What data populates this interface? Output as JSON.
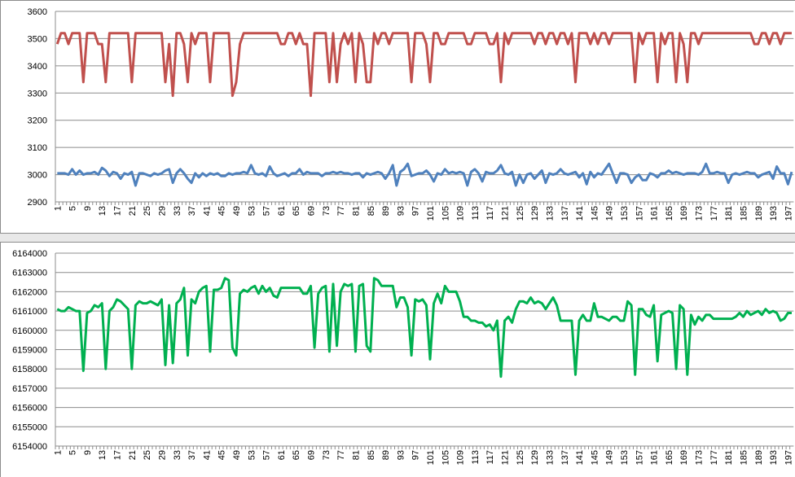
{
  "chart_data": [
    {
      "type": "line",
      "categories": [
        1,
        null,
        null,
        null,
        5,
        null,
        null,
        null,
        9,
        null,
        null,
        null,
        13,
        null,
        null,
        null,
        17,
        null,
        null,
        null,
        21,
        null,
        null,
        null,
        25,
        null,
        null,
        null,
        29,
        null,
        null,
        null,
        33,
        null,
        null,
        null,
        37,
        null,
        null,
        null,
        41,
        null,
        null,
        null,
        45,
        null,
        null,
        null,
        49,
        null,
        null,
        null,
        53,
        null,
        null,
        null,
        57,
        null,
        null,
        null,
        61,
        null,
        null,
        null,
        65,
        null,
        null,
        null,
        69,
        null,
        null,
        null,
        73,
        null,
        null,
        null,
        77,
        null,
        null,
        null,
        81,
        null,
        null,
        null,
        85,
        null,
        null,
        null,
        89,
        null,
        null,
        null,
        93,
        null,
        null,
        null,
        97,
        null,
        null,
        null,
        101,
        null,
        null,
        null,
        105,
        null,
        null,
        null,
        109,
        null,
        null,
        null,
        113,
        null,
        null,
        null,
        117,
        null,
        null,
        null,
        121,
        null,
        null,
        null,
        125,
        null,
        null,
        null,
        129,
        null,
        null,
        null,
        133,
        null,
        null,
        null,
        137,
        null,
        null,
        null,
        141,
        null,
        null,
        null,
        145,
        null,
        null,
        null,
        149,
        null,
        null,
        null,
        153,
        null,
        null,
        null,
        157,
        null,
        null,
        null,
        161,
        null,
        null,
        null,
        165,
        null,
        null,
        null,
        169,
        null,
        null,
        null,
        173,
        null,
        null,
        null,
        177,
        null,
        null,
        null,
        181,
        null,
        null,
        null,
        185,
        null,
        null,
        null,
        189,
        null,
        null,
        null,
        193,
        null,
        null,
        null,
        197,
        null
      ],
      "series": [
        {
          "color": "#c0504d",
          "values": [
            3480,
            3520,
            3520,
            3480,
            3520,
            3520,
            3520,
            3340,
            3520,
            3520,
            3520,
            3480,
            3480,
            3340,
            3520,
            3520,
            3520,
            3520,
            3520,
            3520,
            3340,
            3520,
            3520,
            3520,
            3520,
            3520,
            3520,
            3520,
            3520,
            3340,
            3480,
            3290,
            3520,
            3520,
            3480,
            3340,
            3520,
            3480,
            3520,
            3520,
            3520,
            3340,
            3520,
            3520,
            3520,
            3520,
            3520,
            3290,
            3340,
            3480,
            3520,
            3520,
            3520,
            3520,
            3520,
            3520,
            3520,
            3520,
            3520,
            3520,
            3480,
            3480,
            3520,
            3520,
            3480,
            3520,
            3480,
            3480,
            3290,
            3520,
            3520,
            3520,
            3520,
            3340,
            3520,
            3340,
            3480,
            3520,
            3480,
            3520,
            3340,
            3520,
            3480,
            3340,
            3340,
            3520,
            3480,
            3520,
            3520,
            3480,
            3520,
            3520,
            3520,
            3520,
            3520,
            3340,
            3520,
            3520,
            3520,
            3480,
            3340,
            3520,
            3520,
            3480,
            3480,
            3520,
            3520,
            3520,
            3520,
            3520,
            3480,
            3480,
            3520,
            3520,
            3520,
            3520,
            3480,
            3480,
            3520,
            3340,
            3520,
            3480,
            3520,
            3520,
            3520,
            3520,
            3520,
            3520,
            3480,
            3520,
            3520,
            3480,
            3520,
            3520,
            3480,
            3520,
            3520,
            3480,
            3520,
            3340,
            3520,
            3520,
            3520,
            3480,
            3520,
            3480,
            3520,
            3520,
            3480,
            3520,
            3520,
            3520,
            3520,
            3520,
            3520,
            3340,
            3520,
            3480,
            3520,
            3520,
            3520,
            3340,
            3520,
            3480,
            3520,
            3520,
            3340,
            3520,
            3480,
            3340,
            3520,
            3520,
            3480,
            3520,
            3520,
            3520,
            3520,
            3520,
            3520,
            3520,
            3520,
            3520,
            3520,
            3520,
            3520,
            3520,
            3520,
            3480,
            3480,
            3520,
            3520,
            3480,
            3520,
            3520,
            3480,
            3520,
            3520,
            3520
          ]
        },
        {
          "color": "#4f81bd",
          "values": [
            3005,
            3005,
            3005,
            3000,
            3020,
            3000,
            3015,
            3000,
            3005,
            3005,
            3010,
            3000,
            3025,
            3015,
            2995,
            3010,
            3005,
            2985,
            3005,
            3000,
            3010,
            2960,
            3005,
            3005,
            3000,
            2995,
            3005,
            3000,
            3005,
            3015,
            3020,
            2970,
            3005,
            3020,
            3005,
            2985,
            2970,
            3005,
            2990,
            3005,
            2995,
            3005,
            3000,
            3005,
            2995,
            2995,
            3005,
            3000,
            3005,
            3005,
            3010,
            3005,
            3035,
            3005,
            3000,
            3005,
            2995,
            3030,
            3005,
            2995,
            3000,
            3005,
            2995,
            3005,
            3005,
            3020,
            3000,
            3010,
            3005,
            3005,
            3005,
            2995,
            3005,
            3005,
            3010,
            3005,
            3010,
            3005,
            3005,
            3000,
            3005,
            3005,
            2990,
            3005,
            3000,
            3005,
            3010,
            3005,
            2985,
            3005,
            3035,
            2960,
            3010,
            3020,
            3040,
            2995,
            3000,
            3005,
            3005,
            3015,
            3000,
            2975,
            3005,
            3000,
            3020,
            3005,
            3010,
            3005,
            3010,
            3005,
            2960,
            3010,
            3020,
            3005,
            2975,
            3010,
            3005,
            3005,
            3015,
            3035,
            3005,
            3000,
            3010,
            2960,
            3000,
            2970,
            3000,
            3005,
            2985,
            3000,
            3015,
            2970,
            3005,
            3000,
            3005,
            3020,
            3005,
            3000,
            3005,
            3010,
            2990,
            3005,
            2965,
            3010,
            2990,
            3005,
            3000,
            3020,
            3040,
            3005,
            2970,
            3005,
            3005,
            3000,
            2970,
            2990,
            3000,
            2980,
            2980,
            3005,
            3000,
            2990,
            3005,
            3005,
            3015,
            3005,
            3010,
            3005,
            3000,
            3005,
            3005,
            3005,
            3000,
            3010,
            3040,
            3005,
            3005,
            3010,
            3005,
            3005,
            2970,
            3000,
            3005,
            3000,
            3005,
            3010,
            3005,
            3005,
            2990,
            3000,
            3005,
            3010,
            2985,
            3030,
            3005,
            3005,
            2965,
            3010
          ]
        }
      ],
      "ylim": [
        2900,
        3600
      ],
      "yticks": [
        2900,
        3000,
        3100,
        3200,
        3300,
        3400,
        3500,
        3600
      ],
      "grid": true
    },
    {
      "type": "line",
      "categories": [
        1,
        null,
        null,
        null,
        5,
        null,
        null,
        null,
        9,
        null,
        null,
        null,
        13,
        null,
        null,
        null,
        17,
        null,
        null,
        null,
        21,
        null,
        null,
        null,
        25,
        null,
        null,
        null,
        29,
        null,
        null,
        null,
        33,
        null,
        null,
        null,
        37,
        null,
        null,
        null,
        41,
        null,
        null,
        null,
        45,
        null,
        null,
        null,
        49,
        null,
        null,
        null,
        53,
        null,
        null,
        null,
        57,
        null,
        null,
        null,
        61,
        null,
        null,
        null,
        65,
        null,
        null,
        null,
        69,
        null,
        null,
        null,
        73,
        null,
        null,
        null,
        77,
        null,
        null,
        null,
        81,
        null,
        null,
        null,
        85,
        null,
        null,
        null,
        89,
        null,
        null,
        null,
        93,
        null,
        null,
        null,
        97,
        null,
        null,
        null,
        101,
        null,
        null,
        null,
        105,
        null,
        null,
        null,
        109,
        null,
        null,
        null,
        113,
        null,
        null,
        null,
        117,
        null,
        null,
        null,
        121,
        null,
        null,
        null,
        125,
        null,
        null,
        null,
        129,
        null,
        null,
        null,
        133,
        null,
        null,
        null,
        137,
        null,
        null,
        null,
        141,
        null,
        null,
        null,
        145,
        null,
        null,
        null,
        149,
        null,
        null,
        null,
        153,
        null,
        null,
        null,
        157,
        null,
        null,
        null,
        161,
        null,
        null,
        null,
        165,
        null,
        null,
        null,
        169,
        null,
        null,
        null,
        173,
        null,
        null,
        null,
        177,
        null,
        null,
        null,
        181,
        null,
        null,
        null,
        185,
        null,
        null,
        null,
        189,
        null,
        null,
        null,
        193,
        null,
        null,
        null,
        197,
        null
      ],
      "series": [
        {
          "color": "#00b050",
          "values": [
            6161100,
            6161000,
            6161000,
            6161200,
            6161100,
            6161000,
            6161000,
            6157900,
            6160900,
            6161000,
            6161300,
            6161200,
            6161400,
            6158000,
            6161000,
            6161200,
            6161600,
            6161500,
            6161300,
            6161100,
            6158000,
            6161300,
            6161500,
            6161400,
            6161400,
            6161500,
            6161400,
            6161300,
            6161600,
            6158200,
            6161300,
            6158300,
            6161400,
            6161600,
            6162200,
            6158700,
            6161600,
            6161400,
            6162000,
            6162200,
            6162300,
            6158900,
            6162100,
            6162100,
            6162200,
            6162700,
            6162600,
            6159100,
            6158700,
            6161900,
            6162100,
            6162000,
            6162200,
            6162300,
            6161900,
            6162300,
            6162000,
            6162200,
            6161800,
            6161700,
            6162200,
            6162200,
            6162200,
            6162200,
            6162200,
            6162200,
            6161900,
            6161900,
            6162300,
            6159100,
            6161900,
            6162200,
            6162300,
            6158900,
            6162400,
            6159200,
            6162000,
            6162400,
            6162300,
            6162400,
            6158900,
            6162300,
            6162400,
            6159200,
            6158900,
            6162700,
            6162600,
            6162300,
            6162300,
            6162300,
            6162300,
            6161200,
            6161700,
            6161700,
            6161200,
            6158700,
            6161600,
            6161500,
            6161600,
            6161300,
            6158500,
            6161400,
            6161900,
            6161400,
            6162300,
            6162000,
            6162000,
            6162000,
            6161500,
            6160700,
            6160700,
            6160500,
            6160500,
            6160400,
            6160400,
            6160200,
            6160300,
            6160000,
            6160500,
            6157600,
            6160500,
            6160700,
            6160400,
            6161100,
            6161500,
            6161500,
            6161400,
            6161700,
            6161400,
            6161500,
            6161400,
            6161100,
            6161400,
            6161700,
            6161300,
            6160500,
            6160500,
            6160500,
            6160500,
            6157700,
            6160500,
            6160800,
            6160500,
            6160500,
            6161400,
            6160700,
            6160700,
            6160600,
            6160500,
            6160700,
            6160700,
            6160500,
            6160500,
            6161500,
            6161300,
            6157700,
            6161100,
            6161100,
            6160800,
            6160700,
            6161300,
            6158400,
            6160800,
            6160900,
            6161000,
            6160900,
            6158000,
            6161300,
            6161100,
            6157700,
            6160800,
            6160300,
            6160700,
            6160500,
            6160800,
            6160800,
            6160600,
            6160600,
            6160600,
            6160600,
            6160600,
            6160600,
            6160700,
            6160900,
            6160700,
            6161000,
            6160800,
            6160900,
            6161000,
            6160800,
            6161100,
            6160900,
            6161000,
            6160900,
            6160500,
            6160600,
            6160900,
            6160900
          ]
        }
      ],
      "ylim": [
        6154000,
        6164000
      ],
      "yticks": [
        6154000,
        6155000,
        6156000,
        6157000,
        6158000,
        6159000,
        6160000,
        6161000,
        6162000,
        6163000,
        6164000
      ],
      "grid": true
    }
  ]
}
